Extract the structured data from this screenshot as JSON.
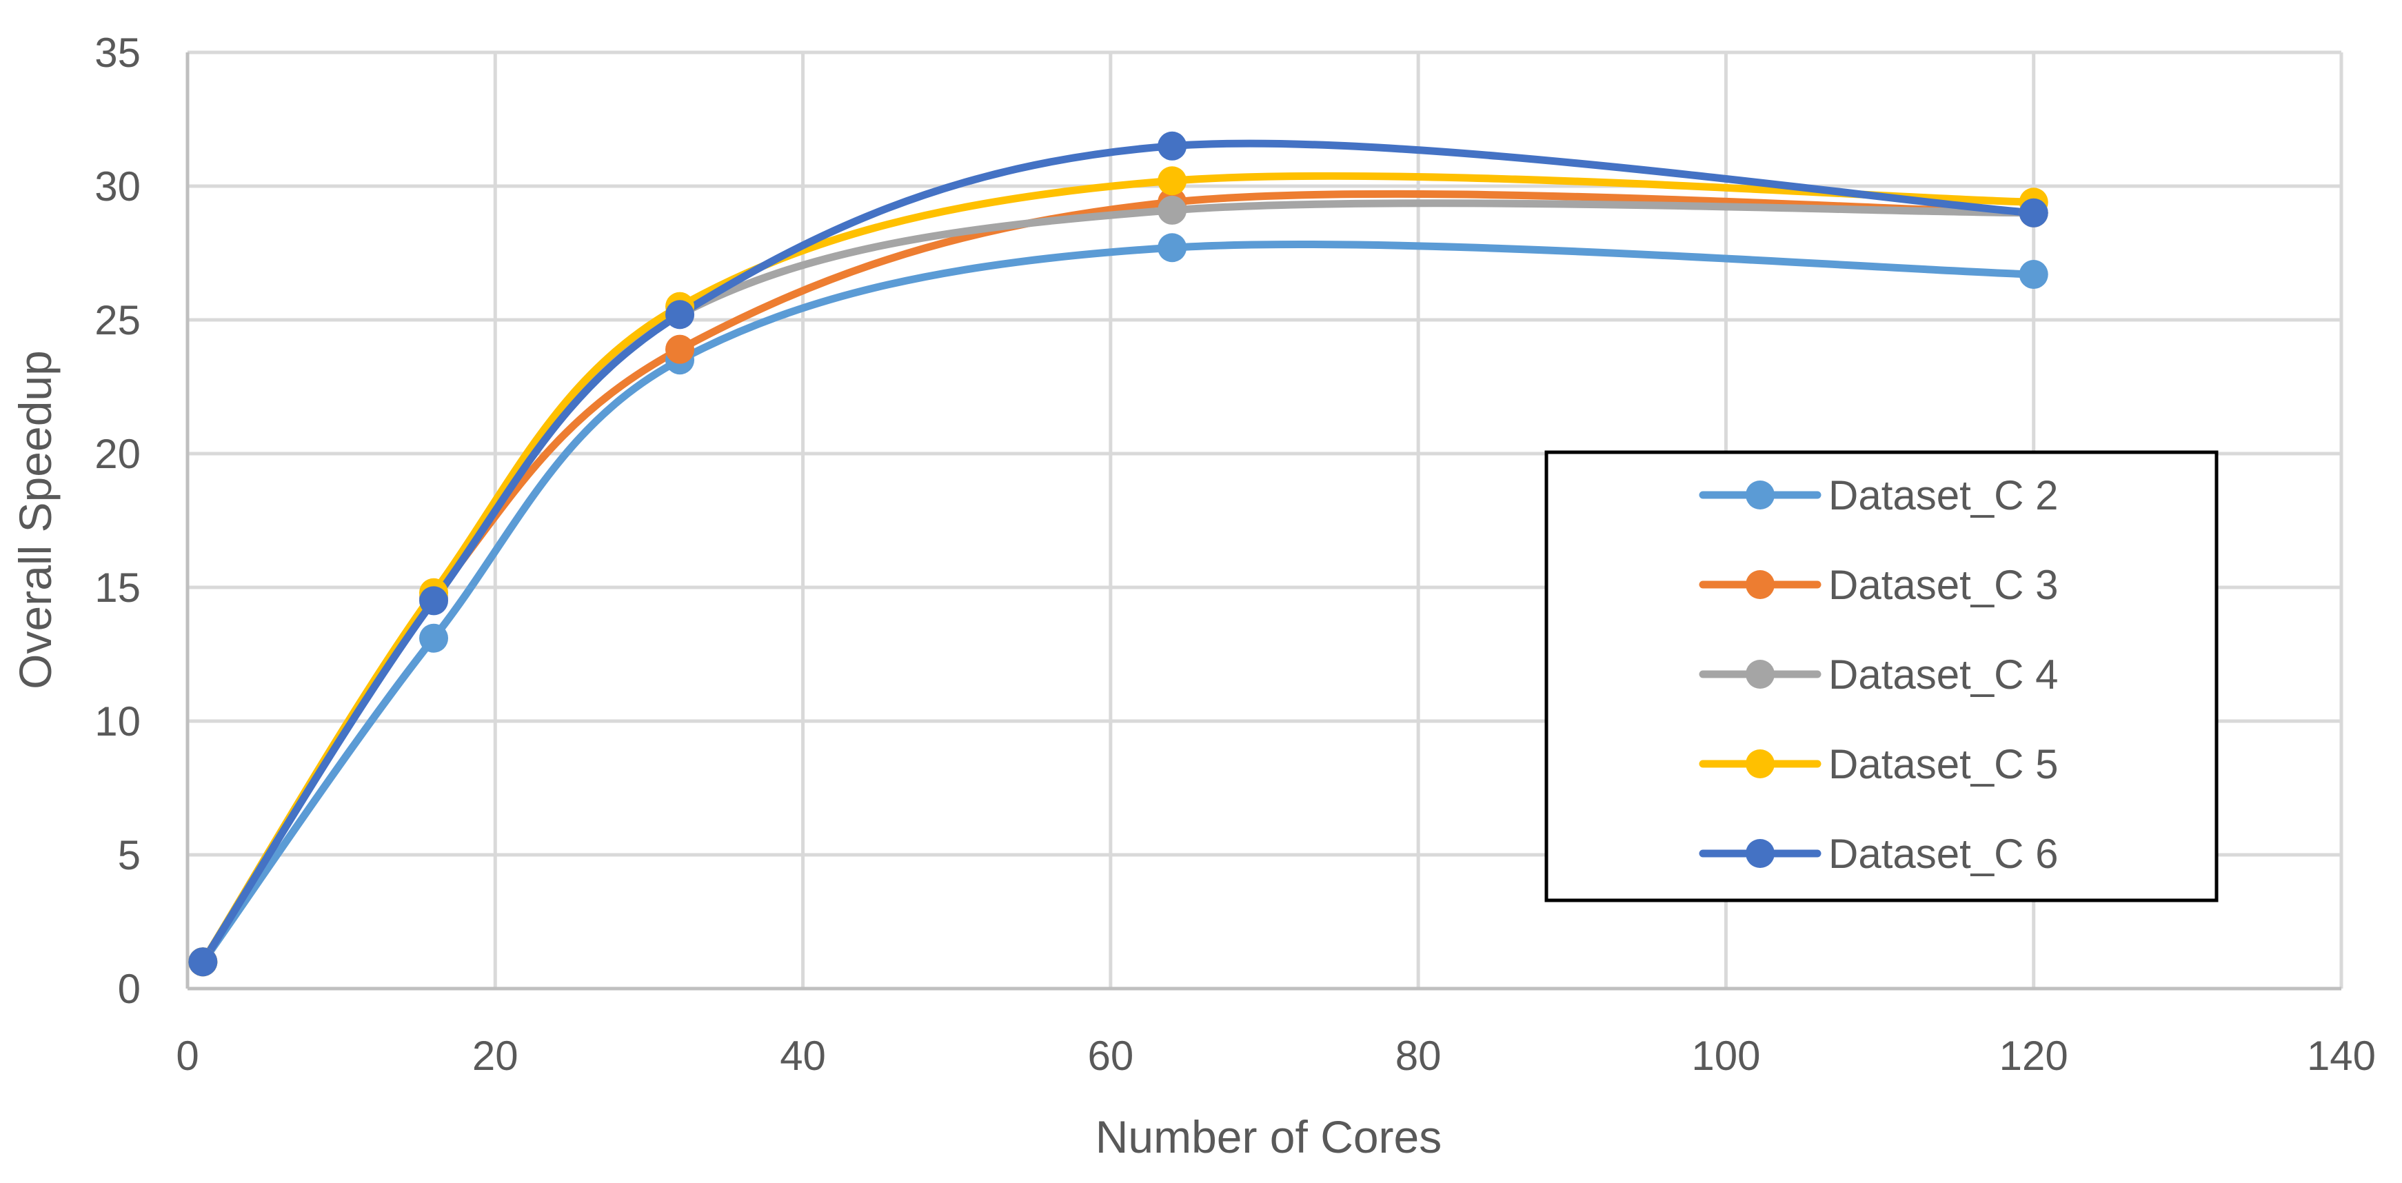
{
  "chart_data": {
    "type": "line",
    "title": "",
    "xlabel": "Number of Cores",
    "ylabel": "Overall Speedup",
    "xlim": [
      0,
      140
    ],
    "ylim": [
      0,
      35
    ],
    "xticks": [
      0,
      20,
      40,
      60,
      80,
      100,
      120,
      140
    ],
    "yticks": [
      0,
      5,
      10,
      15,
      20,
      25,
      30,
      35
    ],
    "xtick_labels": [
      "0",
      "20",
      "40",
      "60",
      "80",
      "100",
      "120",
      "140"
    ],
    "ytick_labels": [
      "0",
      "5",
      "10",
      "15",
      "20",
      "25",
      "30",
      "35"
    ],
    "grid": true,
    "smooth": true,
    "legend_position": "center-right",
    "x": [
      1,
      16,
      32,
      64,
      120
    ],
    "series": [
      {
        "name": "Dataset_C 2",
        "color": "#5B9BD5",
        "values": [
          1,
          13.1,
          23.5,
          27.7,
          26.7
        ]
      },
      {
        "name": "Dataset_C 3",
        "color": "#ED7D31",
        "values": [
          1,
          14.6,
          23.9,
          29.4,
          29.0
        ]
      },
      {
        "name": "Dataset_C 4",
        "color": "#A5A5A5",
        "values": [
          1,
          14.6,
          25.2,
          29.1,
          29.0
        ]
      },
      {
        "name": "Dataset_C 5",
        "color": "#FFC000",
        "values": [
          1,
          14.8,
          25.5,
          30.2,
          29.4
        ]
      },
      {
        "name": "Dataset_C 6",
        "color": "#4472C4",
        "values": [
          1,
          14.5,
          25.2,
          31.5,
          29.0
        ]
      }
    ]
  }
}
